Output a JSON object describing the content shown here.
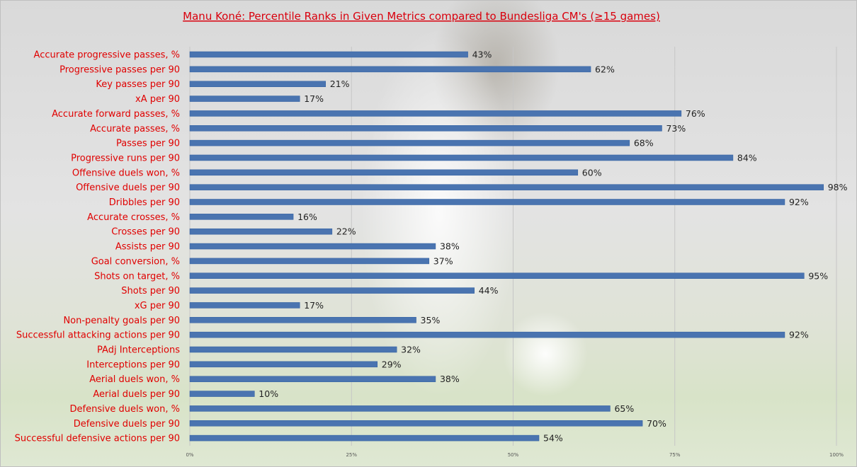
{
  "chart_data": {
    "type": "bar",
    "orientation": "horizontal",
    "title": "Manu Koné: Percentile Ranks in Given Metrics compared to Bundesliga CM's (≥15 games)",
    "categories": [
      "Accurate progressive passes, %",
      "Progressive passes per 90",
      "Key passes per 90",
      "xA per 90",
      "Accurate forward passes, %",
      "Accurate passes, %",
      "Passes per 90",
      "Progressive runs per 90",
      "Offensive duels won, %",
      "Offensive duels per 90",
      "Dribbles per 90",
      "Accurate crosses, %",
      "Crosses per 90",
      "Assists per 90",
      "Goal conversion, %",
      "Shots on target, %",
      "Shots per 90",
      "xG per 90",
      "Non-penalty goals per 90",
      "Successful attacking actions per 90",
      "PAdj Interceptions",
      "Interceptions per 90",
      "Aerial duels won, %",
      "Aerial duels per 90",
      "Defensive duels won, %",
      "Defensive duels per 90",
      "Successful defensive actions per 90"
    ],
    "values": [
      43,
      62,
      21,
      17,
      76,
      73,
      68,
      84,
      60,
      98,
      92,
      16,
      22,
      38,
      37,
      95,
      44,
      17,
      35,
      92,
      32,
      29,
      38,
      10,
      65,
      70,
      54
    ],
    "value_labels": [
      "43%",
      "62%",
      "21%",
      "17%",
      "76%",
      "73%",
      "68%",
      "84%",
      "60%",
      "98%",
      "92%",
      "16%",
      "22%",
      "38%",
      "37%",
      "95%",
      "44%",
      "17%",
      "35%",
      "92%",
      "32%",
      "29%",
      "38%",
      "10%",
      "65%",
      "70%",
      "54%"
    ],
    "xticks": [
      0,
      25,
      50,
      75,
      100
    ],
    "xtick_labels": [
      "0%",
      "25%",
      "50%",
      "75%",
      "100%"
    ],
    "xlim": [
      0,
      100
    ],
    "xlabel": "",
    "ylabel": "",
    "grid": true,
    "colors": {
      "bar": "#4a74b0",
      "bar_edge": "#2f5ea0",
      "category_text": "#e00000",
      "title": "#d9000d",
      "gridline": "#c6c6c6"
    }
  }
}
